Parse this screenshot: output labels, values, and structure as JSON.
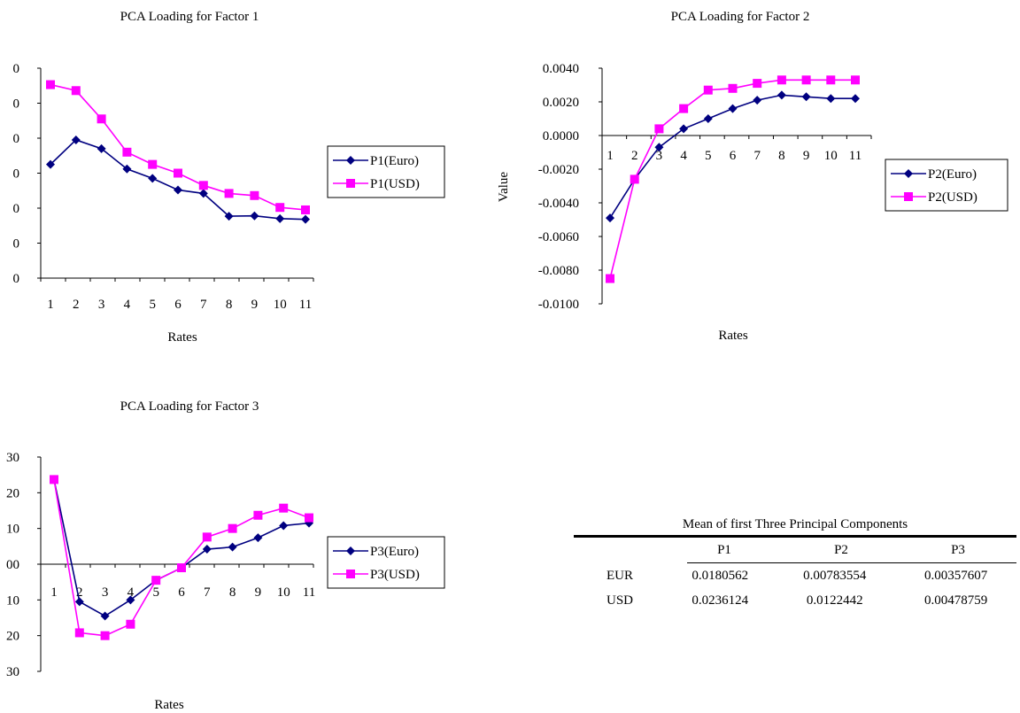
{
  "colors": {
    "euro": "#000080",
    "usd": "#ff00ff",
    "axis": "#000000"
  },
  "chart_data": [
    {
      "type": "line",
      "title": "PCA Loading for Factor 1",
      "xlabel": "Rates",
      "ylabel": "",
      "categories": [
        "1",
        "2",
        "3",
        "4",
        "5",
        "6",
        "7",
        "8",
        "9",
        "10",
        "11"
      ],
      "y_ticks": [
        "0",
        "0",
        "0",
        "0",
        "0",
        "0",
        "0"
      ],
      "ylim": [
        0,
        6
      ],
      "grid": false,
      "legend": "right",
      "series": [
        {
          "name": "P1(Euro)",
          "values": [
            3.25,
            3.95,
            3.7,
            3.12,
            2.85,
            2.52,
            2.42,
            1.77,
            1.78,
            1.7,
            1.68
          ]
        },
        {
          "name": "P1(USD)",
          "values": [
            5.53,
            5.36,
            4.55,
            3.6,
            3.25,
            3.0,
            2.65,
            2.42,
            2.36,
            2.02,
            1.95
          ]
        }
      ]
    },
    {
      "type": "line",
      "title": "PCA Loading for Factor 2",
      "xlabel": "Rates",
      "ylabel": "Value",
      "categories": [
        "1",
        "2",
        "3",
        "4",
        "5",
        "6",
        "7",
        "8",
        "9",
        "10",
        "11"
      ],
      "y_ticks": [
        "0.0040",
        "0.0020",
        "0.0000",
        "-0.0020",
        "-0.0040",
        "-0.0060",
        "-0.0080",
        "-0.0100"
      ],
      "ylim": [
        -0.01,
        0.004
      ],
      "grid": false,
      "legend": "right",
      "series": [
        {
          "name": "P2(Euro)",
          "values": [
            -0.0049,
            -0.0026,
            -0.0007,
            0.0004,
            0.001,
            0.0016,
            0.0021,
            0.0024,
            0.0023,
            0.0022,
            0.0022
          ]
        },
        {
          "name": "P2(USD)",
          "values": [
            -0.0085,
            -0.0026,
            0.0004,
            0.0016,
            0.0027,
            0.0028,
            0.0031,
            0.0033,
            0.0033,
            0.0033,
            0.0033
          ]
        }
      ]
    },
    {
      "type": "line",
      "title": "PCA Loading for Factor 3",
      "xlabel": "Rates",
      "ylabel": "",
      "categories": [
        "1",
        "2",
        "3",
        "4",
        "5",
        "6",
        "7",
        "8",
        "9",
        "10",
        "11"
      ],
      "y_ticks": [
        "30",
        "20",
        "10",
        "00",
        "10",
        "20",
        "30"
      ],
      "ylim": [
        -3,
        3
      ],
      "grid": false,
      "legend": "right",
      "series": [
        {
          "name": "P3(Euro)",
          "values": [
            2.37,
            -1.05,
            -1.45,
            -1.0,
            -0.45,
            -0.1,
            0.42,
            0.48,
            0.74,
            1.08,
            1.15
          ]
        },
        {
          "name": "P3(USD)",
          "values": [
            2.37,
            -1.92,
            -2.0,
            -1.68,
            -0.45,
            -0.1,
            0.76,
            1.0,
            1.37,
            1.57,
            1.3
          ]
        }
      ]
    }
  ],
  "table": {
    "title": "Mean of first Three Principal Components",
    "columns": [
      "",
      "P1",
      "P2",
      "P3"
    ],
    "rows": [
      [
        "EUR",
        "0.0180562",
        "0.00783554",
        "0.00357607"
      ],
      [
        "USD",
        "0.0236124",
        "0.0122442",
        "0.00478759"
      ]
    ]
  }
}
